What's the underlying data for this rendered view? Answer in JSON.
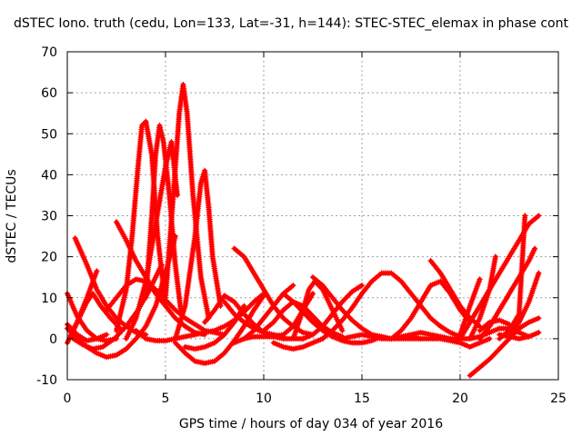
{
  "chart_data": {
    "type": "scatter",
    "title": "dSTEC Iono. truth (cedu, Lon=133, Lat=-31, h=144): STEC-STEC_elemax in phase cont",
    "xlabel": "GPS time / hours of day 034 of year 2016",
    "ylabel": "dSTEC  / TECUs",
    "xlim": [
      0,
      25
    ],
    "ylim": [
      -10,
      70
    ],
    "x_ticks": [
      0,
      5,
      10,
      15,
      20,
      25
    ],
    "y_ticks": [
      -10,
      0,
      10,
      20,
      30,
      40,
      50,
      60,
      70
    ],
    "x_tick_labels": [
      "0",
      "5",
      "10",
      "15",
      "20",
      "25"
    ],
    "y_tick_labels": [
      "-10",
      "0",
      "10",
      "20",
      "30",
      "40",
      "50",
      "60",
      "70"
    ],
    "grid": true,
    "marker": "+",
    "color": "#ff0000",
    "series": [
      {
        "x": [
          0.0,
          0.5,
          1.0,
          1.5,
          2.0,
          2.5
        ],
        "y": [
          11,
          5.5,
          2,
          0,
          -0.5,
          0
        ]
      },
      {
        "x": [
          0.0,
          0.5,
          1.0,
          1.5,
          2.0
        ],
        "y": [
          3.5,
          1,
          -0.5,
          0,
          1
        ]
      },
      {
        "x": [
          0.4,
          1.0,
          1.5,
          2.0,
          2.5,
          3.0,
          3.5,
          4.0
        ],
        "y": [
          24.5,
          18,
          12,
          8,
          5,
          3,
          1.5,
          1
        ]
      },
      {
        "x": [
          0.0,
          0.5,
          1.0,
          1.5,
          2.0,
          2.5,
          3.0,
          3.5,
          4.0,
          4.5,
          5.0,
          5.5
        ],
        "y": [
          2.5,
          0,
          -2,
          -3.5,
          -4.5,
          -4,
          -2.5,
          0,
          3,
          8,
          16,
          25
        ]
      },
      {
        "x": [
          0.0,
          0.5,
          1.0,
          1.5
        ],
        "y": [
          -1,
          4,
          10,
          16.5
        ]
      },
      {
        "x": [
          0.2,
          0.6,
          1.0,
          1.3,
          1.7,
          2.2,
          2.8
        ],
        "y": [
          1,
          5,
          9,
          11,
          8,
          5,
          2
        ]
      },
      {
        "x": [
          0.3,
          0.8,
          1.3,
          1.8,
          2.4,
          3.0,
          3.6,
          4.2,
          4.8
        ],
        "y": [
          0,
          -1.5,
          -2.5,
          -2,
          0,
          3,
          7,
          12,
          18
        ]
      },
      {
        "x": [
          2.5,
          3.0,
          3.5,
          4.0,
          4.5,
          5.0,
          5.5,
          6.0,
          6.5,
          7.0
        ],
        "y": [
          28.5,
          24,
          19,
          15,
          11,
          8,
          5,
          3,
          1.5,
          1
        ]
      },
      {
        "x": [
          2.0,
          2.5,
          3.0,
          3.5,
          4.0,
          4.5,
          5.0,
          5.5,
          6.0,
          6.5,
          7.0,
          7.5,
          8.0
        ],
        "y": [
          7,
          10,
          13,
          14.5,
          14,
          12,
          9.5,
          7,
          5,
          3.5,
          2,
          1.5,
          1
        ]
      },
      {
        "x": [
          2.5,
          3.0,
          3.3,
          3.6,
          3.8,
          4.0,
          4.3,
          4.6,
          5.0
        ],
        "y": [
          2,
          12,
          25,
          42,
          52,
          53,
          45,
          25,
          8
        ]
      },
      {
        "x": [
          4.0,
          4.3,
          4.5,
          4.7,
          4.9,
          5.2,
          5.5,
          5.8
        ],
        "y": [
          10,
          30,
          45,
          52,
          48,
          35,
          18,
          6
        ]
      },
      {
        "x": [
          3.0,
          3.5,
          4.0,
          4.5,
          5.0,
          5.3,
          5.6
        ],
        "y": [
          0,
          5,
          14,
          28,
          42,
          48,
          35
        ]
      },
      {
        "x": [
          5.0,
          5.4,
          5.7,
          5.9,
          6.1,
          6.4,
          6.8,
          7.2
        ],
        "y": [
          10,
          35,
          55,
          62,
          55,
          35,
          15,
          5
        ]
      },
      {
        "x": [
          5.5,
          6.0,
          6.5,
          6.8,
          7.0,
          7.2,
          7.4,
          7.8
        ],
        "y": [
          0,
          8,
          25,
          38,
          41,
          32,
          20,
          8
        ]
      },
      {
        "x": [
          3.5,
          4.0,
          4.5,
          5.0,
          5.5,
          6.0,
          6.5,
          7.0,
          7.5,
          8.0,
          8.5,
          9.0,
          9.5,
          10.0
        ],
        "y": [
          2,
          0,
          -0.5,
          -0.5,
          0,
          0.5,
          1,
          1.5,
          2,
          3,
          4.5,
          6.5,
          9,
          11
        ]
      },
      {
        "x": [
          5.5,
          6.0,
          6.5,
          7.0,
          7.5,
          8.0,
          8.5,
          9.0,
          9.5,
          10.0
        ],
        "y": [
          -1,
          -3.5,
          -5.5,
          -6,
          -5.5,
          -3.5,
          -0.5,
          3,
          7,
          10.5
        ]
      },
      {
        "x": [
          6.0,
          6.5,
          7.0,
          7.5,
          8.0,
          8.5,
          9.0
        ],
        "y": [
          -2,
          -2.5,
          -2,
          -1,
          1,
          4,
          8
        ]
      },
      {
        "x": [
          7.0,
          7.5,
          8.0,
          8.5,
          9.0,
          9.5,
          10.0,
          10.5,
          11.0,
          11.5,
          12.0
        ],
        "y": [
          4,
          7,
          10.5,
          9,
          6,
          3.5,
          1.5,
          0.5,
          0,
          0,
          0
        ]
      },
      {
        "x": [
          8.5,
          9.0,
          9.5,
          10.0,
          10.5,
          11.0,
          11.5,
          12.0,
          12.5
        ],
        "y": [
          22,
          20,
          16,
          12,
          8,
          5,
          3,
          1.5,
          1
        ]
      },
      {
        "x": [
          8.0,
          8.5,
          9.0,
          9.5,
          10.0,
          10.5,
          11.0
        ],
        "y": [
          9,
          6,
          4,
          2.5,
          1.5,
          1,
          0.5
        ]
      },
      {
        "x": [
          9.0,
          9.5,
          10.0,
          10.5,
          11.0,
          11.5
        ],
        "y": [
          0,
          2,
          5,
          8,
          11,
          13
        ]
      },
      {
        "x": [
          8.5,
          9.0,
          9.5,
          10.0,
          10.5,
          11.0,
          11.5,
          12.0,
          12.5
        ],
        "y": [
          -1,
          0,
          0.5,
          0.5,
          0.5,
          1,
          3,
          7,
          11
        ]
      },
      {
        "x": [
          10.0,
          10.5,
          11.0,
          11.5,
          12.0,
          12.5,
          13.0,
          13.5,
          14.0
        ],
        "y": [
          2,
          4,
          7,
          9,
          8,
          5.5,
          3,
          1.5,
          0.5
        ]
      },
      {
        "x": [
          11.5,
          12.0,
          12.3,
          12.6,
          13.0,
          13.5,
          14.0
        ],
        "y": [
          0,
          7,
          12,
          14,
          12,
          7,
          2
        ]
      },
      {
        "x": [
          11.0,
          11.5,
          12.0,
          12.5,
          13.0,
          13.5,
          14.0,
          14.5,
          15.0,
          15.5,
          16.0
        ],
        "y": [
          11,
          9,
          6.5,
          4,
          2,
          0.5,
          -0.5,
          -1,
          -1,
          -0.5,
          0.5
        ]
      },
      {
        "x": [
          12.5,
          13.0,
          13.5,
          14.0,
          14.5,
          15.0,
          15.5,
          16.0,
          16.5,
          17.0,
          17.5,
          18.0
        ],
        "y": [
          15,
          13,
          10,
          7,
          4.5,
          2.5,
          1,
          0.5,
          0,
          0,
          0,
          0
        ]
      },
      {
        "x": [
          10.5,
          11.0,
          11.5,
          12.0,
          12.5,
          13.0
        ],
        "y": [
          -1,
          -2,
          -2.5,
          -2,
          -1,
          0
        ]
      },
      {
        "x": [
          12.0,
          12.5,
          13.0,
          13.5,
          14.0,
          14.5,
          15.0
        ],
        "y": [
          0,
          1,
          3,
          6,
          9,
          11.5,
          13
        ]
      },
      {
        "x": [
          13.0,
          13.5,
          14.0,
          14.5,
          15.0,
          15.5,
          16.0,
          16.5,
          17.0,
          17.5,
          18.0,
          18.5,
          19.0,
          19.5,
          20.0
        ],
        "y": [
          0,
          2,
          4.5,
          7.5,
          11,
          14,
          16,
          16,
          14,
          11,
          8,
          5,
          3,
          1.5,
          0.5
        ]
      },
      {
        "x": [
          14.0,
          14.5,
          15.0,
          15.5,
          16.0,
          16.5,
          17.0,
          17.5,
          18.0,
          18.5,
          19.0,
          19.5
        ],
        "y": [
          0,
          0.5,
          1,
          0.5,
          0,
          0,
          0.5,
          1,
          1.5,
          1,
          0.5,
          0
        ]
      },
      {
        "x": [
          16.5,
          17.0,
          17.5,
          18.0,
          18.5,
          19.0,
          19.5,
          20.0,
          20.5
        ],
        "y": [
          0,
          2,
          5,
          9,
          13,
          14,
          11,
          7,
          4
        ]
      },
      {
        "x": [
          18.5,
          19.0,
          19.5,
          20.0,
          20.5,
          21.0
        ],
        "y": [
          19,
          16,
          12,
          8,
          5,
          3
        ]
      },
      {
        "x": [
          17.5,
          18.0,
          18.5,
          19.0,
          19.5,
          20.0,
          20.5,
          21.0,
          21.5
        ],
        "y": [
          0.5,
          0,
          0,
          0,
          -0.5,
          -1,
          -2,
          -1,
          0
        ]
      },
      {
        "x": [
          19.5,
          20.0,
          20.5,
          21.0,
          21.5,
          22.0,
          22.5,
          23.0,
          23.5
        ],
        "y": [
          0,
          0,
          0,
          0.5,
          1.5,
          2.5,
          2.5,
          1.5,
          0.5
        ]
      },
      {
        "x": [
          20.5,
          21.0,
          21.5,
          22.0,
          22.5,
          23.0,
          23.5,
          24.0
        ],
        "y": [
          -9,
          -7,
          -5,
          -2.5,
          0,
          2.5,
          4,
          5
        ]
      },
      {
        "x": [
          20.0,
          20.5,
          21.0,
          21.5,
          22.0,
          22.5,
          23.0,
          23.5,
          24.0
        ],
        "y": [
          0,
          4,
          8,
          12,
          16,
          20,
          24,
          28,
          30
        ]
      },
      {
        "x": [
          20.5,
          21.0,
          21.5,
          21.8
        ],
        "y": [
          0,
          5,
          12,
          20
        ]
      },
      {
        "x": [
          20.0,
          20.5,
          21.0
        ],
        "y": [
          1,
          8,
          14.5
        ]
      },
      {
        "x": [
          22.0,
          22.5,
          23.0,
          23.3
        ],
        "y": [
          0,
          2,
          6,
          30
        ]
      },
      {
        "x": [
          21.0,
          21.5,
          22.0,
          22.5,
          23.0,
          23.5,
          23.8
        ],
        "y": [
          0,
          3,
          7,
          11,
          15,
          19,
          22
        ]
      },
      {
        "x": [
          22.5,
          23.0,
          23.5,
          24.0
        ],
        "y": [
          0.5,
          4,
          9,
          16
        ]
      },
      {
        "x": [
          22.0,
          22.5,
          23.0,
          23.5,
          24.0
        ],
        "y": [
          1,
          0.5,
          0,
          0.5,
          1.5
        ]
      },
      {
        "x": [
          21.0,
          21.5,
          22.0,
          22.5
        ],
        "y": [
          2,
          4,
          4.5,
          3.5
        ]
      }
    ]
  }
}
